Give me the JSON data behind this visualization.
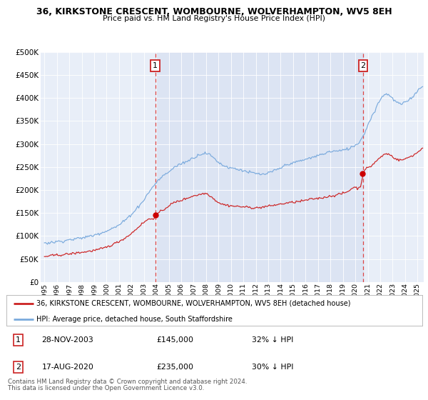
{
  "title1": "36, KIRKSTONE CRESCENT, WOMBOURNE, WOLVERHAMPTON, WV5 8EH",
  "title2": "Price paid vs. HM Land Registry's House Price Index (HPI)",
  "bg_color": "#e8eef8",
  "red_line_label": "36, KIRKSTONE CRESCENT, WOMBOURNE, WOLVERHAMPTON, WV5 8EH (detached house)",
  "blue_line_label": "HPI: Average price, detached house, South Staffordshire",
  "transaction1_date": "28-NOV-2003",
  "transaction1_price": 145000,
  "transaction1_pct": "32% ↓ HPI",
  "transaction1_year": 2003.917,
  "transaction2_date": "17-AUG-2020",
  "transaction2_price": 235000,
  "transaction2_pct": "30% ↓ HPI",
  "transaction2_year": 2020.625,
  "footer1": "Contains HM Land Registry data © Crown copyright and database right 2024.",
  "footer2": "This data is licensed under the Open Government Licence v3.0.",
  "ylim_max": 500000,
  "yticks": [
    0,
    50000,
    100000,
    150000,
    200000,
    250000,
    300000,
    350000,
    400000,
    450000,
    500000
  ],
  "ytick_labels": [
    "£0",
    "£50K",
    "£100K",
    "£150K",
    "£200K",
    "£250K",
    "£300K",
    "£350K",
    "£400K",
    "£450K",
    "£500K"
  ]
}
